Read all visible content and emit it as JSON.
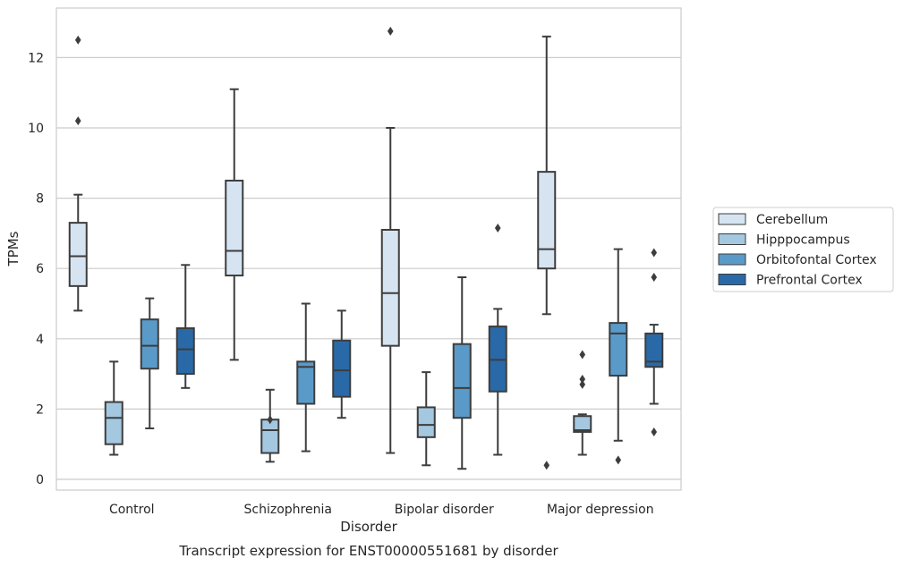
{
  "chart_data": {
    "type": "box",
    "title": "",
    "caption": "Transcript expression for ENST00000551681 by disorder",
    "xlabel": "Disorder",
    "ylabel": "TPMs",
    "ylim": [
      -0.3,
      13.3
    ],
    "yticks": [
      0,
      2,
      4,
      6,
      8,
      10,
      12
    ],
    "grid": "horizontal",
    "legend_position": "right",
    "categories": [
      "Control",
      "Schizophrenia",
      "Bipolar disorder",
      "Major depression"
    ],
    "series": [
      {
        "name": "Cerebellum",
        "color": "#d6e4f2",
        "boxes": [
          {
            "whisker_low": 4.8,
            "q1": 5.5,
            "median": 6.35,
            "q3": 7.3,
            "whisker_high": 8.1,
            "outliers": [
              12.5,
              10.2
            ]
          },
          {
            "whisker_low": 3.4,
            "q1": 5.8,
            "median": 6.5,
            "q3": 8.5,
            "whisker_high": 11.1,
            "outliers": []
          },
          {
            "whisker_low": 0.75,
            "q1": 3.8,
            "median": 5.3,
            "q3": 7.1,
            "whisker_high": 10.0,
            "outliers": [
              12.75
            ]
          },
          {
            "whisker_low": 4.7,
            "q1": 6.0,
            "median": 6.55,
            "q3": 8.75,
            "whisker_high": 12.6,
            "outliers": [
              0.4
            ]
          }
        ]
      },
      {
        "name": "Hipppocampus",
        "color": "#a4c8e0",
        "boxes": [
          {
            "whisker_low": 0.7,
            "q1": 1.0,
            "median": 1.75,
            "q3": 2.2,
            "whisker_high": 3.35,
            "outliers": []
          },
          {
            "whisker_low": 0.5,
            "q1": 0.75,
            "median": 1.4,
            "q3": 1.7,
            "whisker_high": 2.55,
            "outliers": [
              1.7
            ]
          },
          {
            "whisker_low": 0.4,
            "q1": 1.2,
            "median": 1.55,
            "q3": 2.05,
            "whisker_high": 3.05,
            "outliers": []
          },
          {
            "whisker_low": 0.7,
            "q1": 1.35,
            "median": 1.4,
            "q3": 1.8,
            "whisker_high": 1.85,
            "outliers": [
              3.55,
              2.85,
              2.7
            ]
          }
        ]
      },
      {
        "name": "Orbitofontal Cortex",
        "color": "#5a9ac8",
        "boxes": [
          {
            "whisker_low": 1.45,
            "q1": 3.15,
            "median": 3.8,
            "q3": 4.55,
            "whisker_high": 5.15,
            "outliers": []
          },
          {
            "whisker_low": 0.8,
            "q1": 2.15,
            "median": 3.2,
            "q3": 3.35,
            "whisker_high": 5.0,
            "outliers": []
          },
          {
            "whisker_low": 0.3,
            "q1": 1.75,
            "median": 2.6,
            "q3": 3.85,
            "whisker_high": 5.75,
            "outliers": []
          },
          {
            "whisker_low": 1.1,
            "q1": 2.95,
            "median": 4.15,
            "q3": 4.45,
            "whisker_high": 6.55,
            "outliers": [
              0.55
            ]
          }
        ]
      },
      {
        "name": "Prefrontal Cortex",
        "color": "#2a69a8",
        "boxes": [
          {
            "whisker_low": 2.6,
            "q1": 3.0,
            "median": 3.7,
            "q3": 4.3,
            "whisker_high": 6.1,
            "outliers": []
          },
          {
            "whisker_low": 1.75,
            "q1": 2.35,
            "median": 3.1,
            "q3": 3.95,
            "whisker_high": 4.8,
            "outliers": []
          },
          {
            "whisker_low": 0.7,
            "q1": 2.5,
            "median": 3.4,
            "q3": 4.35,
            "whisker_high": 4.85,
            "outliers": [
              7.15
            ]
          },
          {
            "whisker_low": 2.15,
            "q1": 3.2,
            "median": 3.35,
            "q3": 4.15,
            "whisker_high": 4.4,
            "outliers": [
              6.45,
              5.75,
              1.35
            ]
          }
        ]
      }
    ]
  }
}
